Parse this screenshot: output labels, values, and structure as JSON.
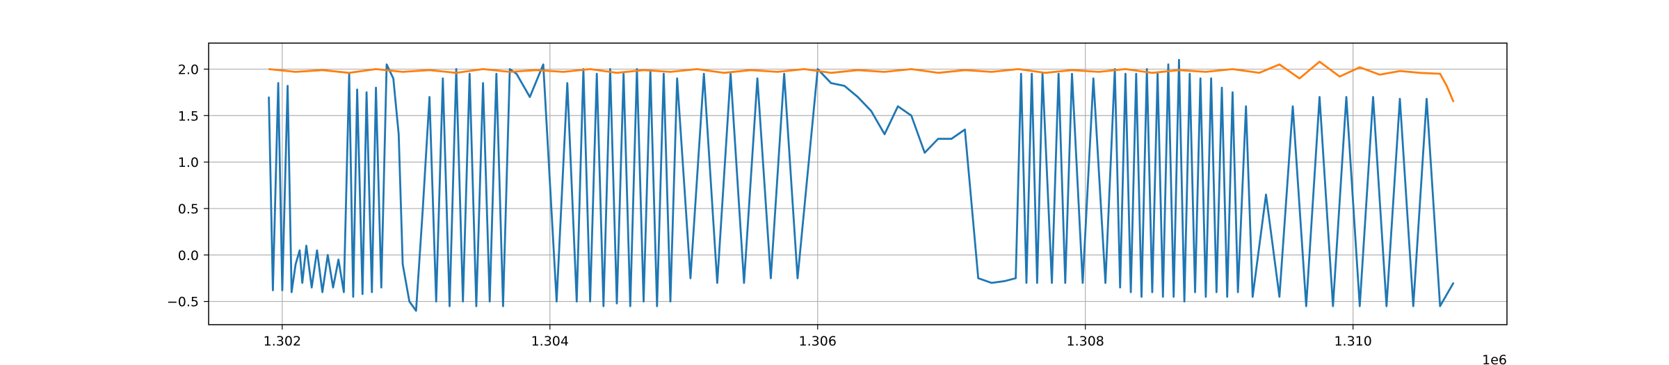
{
  "chart_data": {
    "type": "line",
    "title": "",
    "xlabel": "",
    "ylabel": "",
    "x_offset_label": "1e6",
    "xlim": [
      1.30145,
      1.31115
    ],
    "ylim": [
      -0.75,
      2.28
    ],
    "grid": true,
    "x_ticks": [
      {
        "value": 1.302,
        "label": "1.302"
      },
      {
        "value": 1.304,
        "label": "1.304"
      },
      {
        "value": 1.306,
        "label": "1.306"
      },
      {
        "value": 1.308,
        "label": "1.308"
      },
      {
        "value": 1.31,
        "label": "1.310"
      }
    ],
    "y_ticks": [
      {
        "value": 2.0,
        "label": "2.0"
      },
      {
        "value": 1.5,
        "label": "1.5"
      },
      {
        "value": 1.0,
        "label": "1.0"
      },
      {
        "value": 0.5,
        "label": "0.5"
      },
      {
        "value": 0.0,
        "label": "0.0"
      },
      {
        "value": -0.5,
        "label": "−0.5"
      }
    ],
    "series": [
      {
        "color": "#1f77b4",
        "x": [
          1.3019,
          1.30193,
          1.30197,
          1.302,
          1.30204,
          1.30207,
          1.3021,
          1.30213,
          1.30215,
          1.30218,
          1.30222,
          1.30226,
          1.3023,
          1.30234,
          1.30238,
          1.30242,
          1.30246,
          1.3025,
          1.30253,
          1.30256,
          1.3026,
          1.30263,
          1.30267,
          1.3027,
          1.30274,
          1.30278,
          1.30283,
          1.30287,
          1.3029,
          1.30295,
          1.303,
          1.30305,
          1.3031,
          1.30315,
          1.3032,
          1.30325,
          1.3033,
          1.30335,
          1.3034,
          1.30345,
          1.3035,
          1.30355,
          1.3036,
          1.30365,
          1.3037,
          1.30375,
          1.30385,
          1.30395,
          1.30405,
          1.30413,
          1.3042,
          1.30425,
          1.3043,
          1.30435,
          1.3044,
          1.30445,
          1.3045,
          1.30455,
          1.3046,
          1.30465,
          1.3047,
          1.30475,
          1.3048,
          1.30485,
          1.3049,
          1.30495,
          1.30505,
          1.30515,
          1.30525,
          1.30535,
          1.30545,
          1.30555,
          1.30565,
          1.30575,
          1.30585,
          1.306,
          1.3061,
          1.3062,
          1.3063,
          1.3064,
          1.3065,
          1.3066,
          1.3067,
          1.3068,
          1.3069,
          1.307,
          1.3071,
          1.3072,
          1.3073,
          1.3074,
          1.30748,
          1.30752,
          1.30756,
          1.3076,
          1.30764,
          1.30768,
          1.30775,
          1.3078,
          1.30785,
          1.3079,
          1.30798,
          1.30806,
          1.30815,
          1.30822,
          1.30826,
          1.3083,
          1.30834,
          1.30838,
          1.30842,
          1.30846,
          1.3085,
          1.30854,
          1.30858,
          1.30862,
          1.30866,
          1.3087,
          1.30874,
          1.30878,
          1.30882,
          1.30886,
          1.3089,
          1.30894,
          1.30898,
          1.30902,
          1.30906,
          1.3091,
          1.30914,
          1.3092,
          1.30925,
          1.30935,
          1.30945,
          1.30955,
          1.30965,
          1.30975,
          1.30985,
          1.30995,
          1.31005,
          1.31015,
          1.31025,
          1.31035,
          1.31045,
          1.31055,
          1.31065,
          1.31075
        ],
        "y": [
          1.7,
          -0.38,
          1.85,
          -0.38,
          1.82,
          -0.4,
          -0.1,
          0.05,
          -0.3,
          0.1,
          -0.35,
          0.05,
          -0.4,
          0.0,
          -0.35,
          -0.05,
          -0.4,
          1.95,
          -0.45,
          1.78,
          -0.42,
          1.75,
          -0.4,
          1.8,
          -0.35,
          2.05,
          1.9,
          1.3,
          -0.1,
          -0.5,
          -0.6,
          0.5,
          1.7,
          -0.5,
          1.9,
          -0.55,
          2.0,
          -0.5,
          1.95,
          -0.55,
          1.85,
          -0.5,
          1.95,
          -0.55,
          2.0,
          1.95,
          1.7,
          2.05,
          -0.5,
          1.85,
          -0.5,
          2.0,
          -0.5,
          1.95,
          -0.55,
          2.0,
          -0.52,
          1.95,
          -0.55,
          2.0,
          -0.5,
          1.98,
          -0.55,
          1.95,
          -0.5,
          1.9,
          -0.25,
          1.95,
          -0.3,
          1.95,
          -0.3,
          1.9,
          -0.25,
          1.95,
          -0.25,
          2.0,
          1.85,
          1.82,
          1.7,
          1.55,
          1.3,
          1.6,
          1.5,
          1.1,
          1.25,
          1.25,
          1.35,
          -0.25,
          -0.3,
          -0.28,
          -0.25,
          1.95,
          -0.3,
          1.95,
          -0.3,
          1.95,
          -0.3,
          1.95,
          -0.3,
          1.95,
          -0.3,
          1.9,
          -0.3,
          2.0,
          -0.35,
          1.95,
          -0.4,
          1.95,
          -0.45,
          2.0,
          -0.4,
          1.95,
          -0.45,
          2.05,
          -0.45,
          2.1,
          -0.5,
          1.95,
          -0.4,
          1.9,
          -0.45,
          1.9,
          -0.4,
          1.8,
          -0.45,
          1.75,
          -0.4,
          1.6,
          -0.45,
          0.65,
          -0.45,
          1.6,
          -0.55,
          1.7,
          -0.55,
          1.7,
          -0.55,
          1.7,
          -0.55,
          1.68,
          -0.55,
          1.68,
          -0.55,
          -0.3
        ]
      },
      {
        "color": "#ff7f0e",
        "x": [
          1.3019,
          1.3021,
          1.3023,
          1.3025,
          1.3027,
          1.3029,
          1.3031,
          1.3033,
          1.3035,
          1.3037,
          1.3039,
          1.3041,
          1.3043,
          1.3045,
          1.3047,
          1.3049,
          1.3051,
          1.3053,
          1.3055,
          1.3057,
          1.3059,
          1.3061,
          1.3063,
          1.3065,
          1.3067,
          1.3069,
          1.3071,
          1.3073,
          1.3075,
          1.3077,
          1.3079,
          1.3081,
          1.3083,
          1.3085,
          1.3087,
          1.3089,
          1.3091,
          1.3093,
          1.30945,
          1.3096,
          1.30975,
          1.3099,
          1.31005,
          1.3102,
          1.31035,
          1.3105,
          1.31065,
          1.3107,
          1.31075
        ],
        "y": [
          2.0,
          1.97,
          1.99,
          1.96,
          2.0,
          1.97,
          1.99,
          1.96,
          2.0,
          1.97,
          1.99,
          1.97,
          2.0,
          1.96,
          1.99,
          1.97,
          2.0,
          1.96,
          1.99,
          1.97,
          2.0,
          1.96,
          1.99,
          1.97,
          2.0,
          1.96,
          1.99,
          1.97,
          2.0,
          1.96,
          1.99,
          1.97,
          2.0,
          1.96,
          1.99,
          1.97,
          2.0,
          1.96,
          2.05,
          1.9,
          2.08,
          1.92,
          2.02,
          1.94,
          1.98,
          1.96,
          1.95,
          1.82,
          1.65
        ]
      }
    ]
  }
}
